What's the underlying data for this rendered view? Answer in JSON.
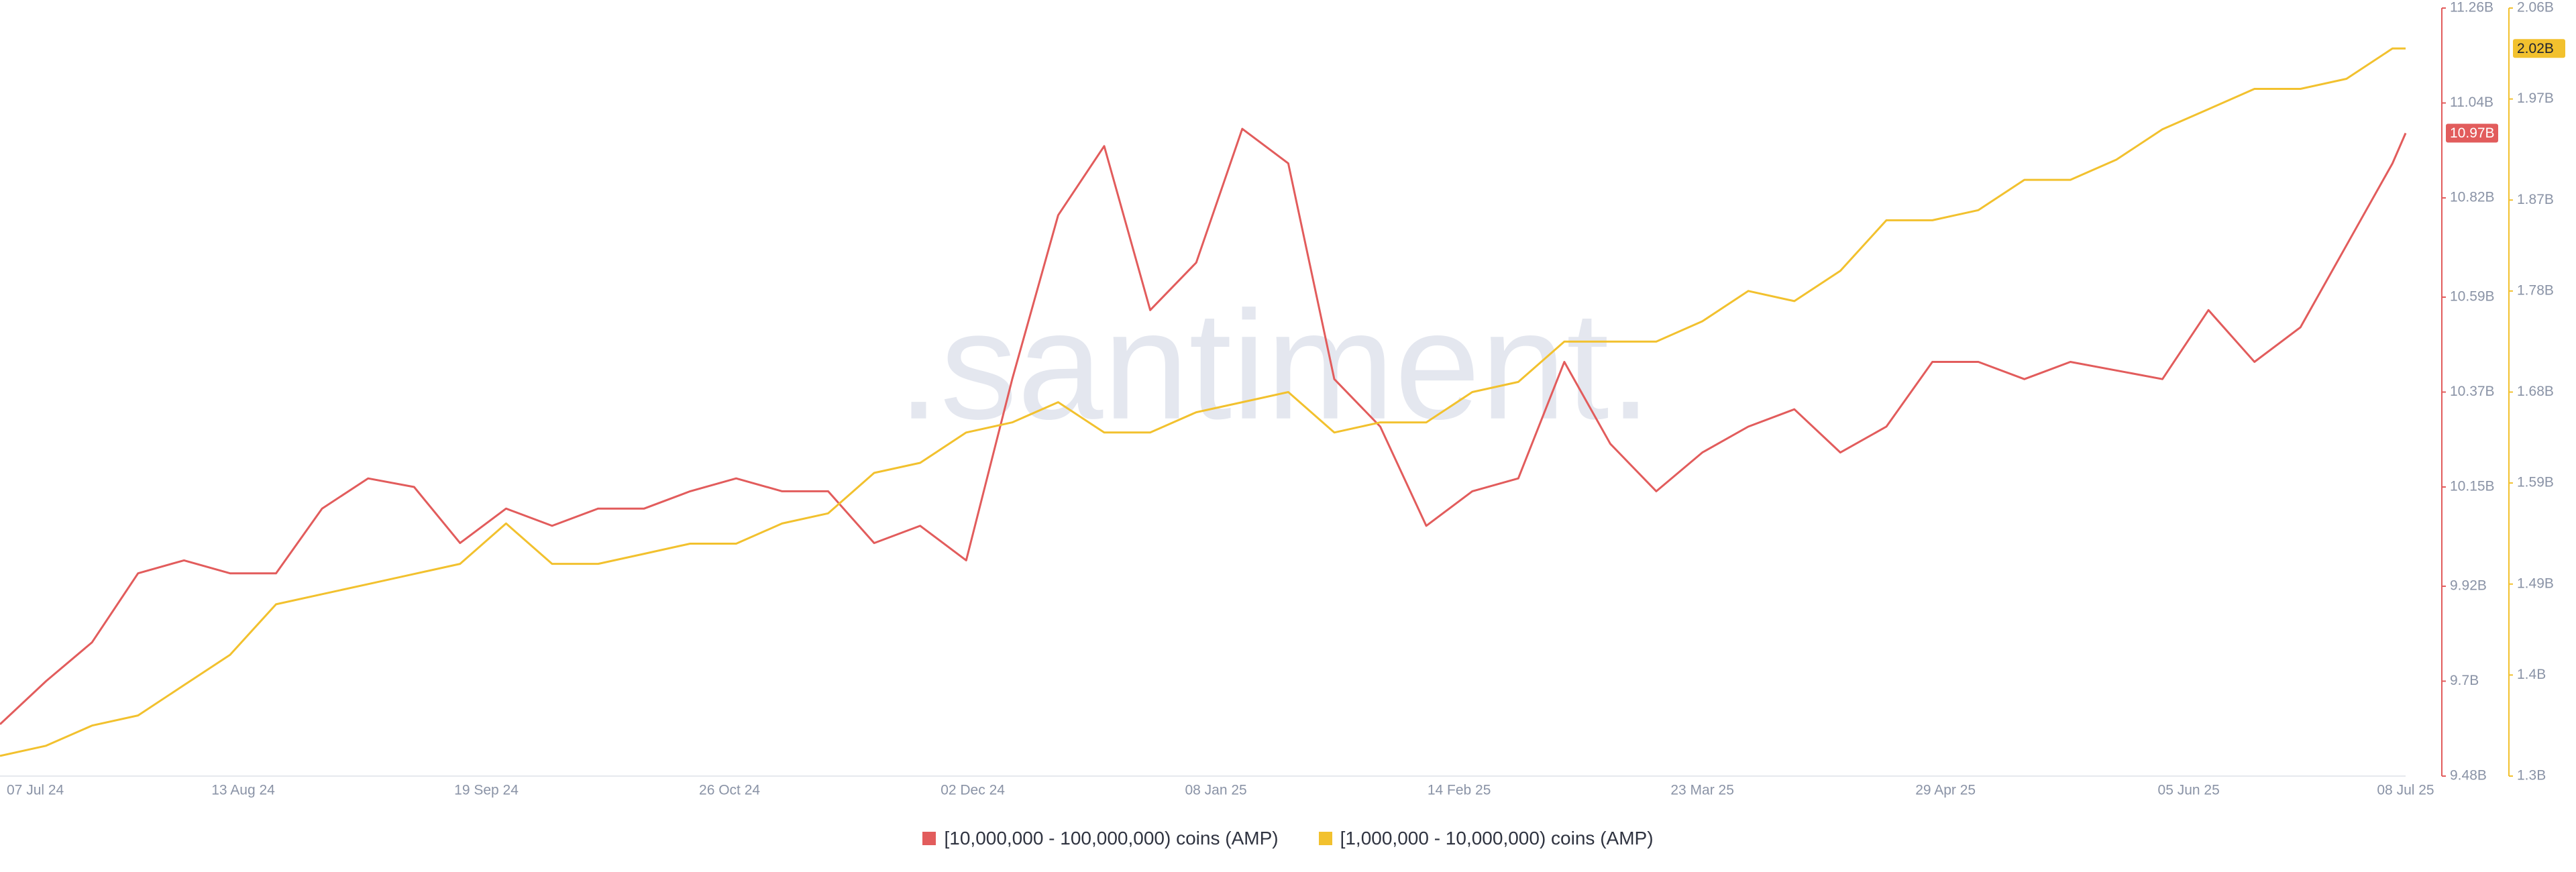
{
  "chart_data": {
    "type": "line",
    "watermark": ".santiment.",
    "x": [
      "07 Jul 24",
      "14 Jul 24",
      "21 Jul 24",
      "28 Jul 24",
      "04 Aug 24",
      "11 Aug 24",
      "18 Aug 24",
      "25 Aug 24",
      "01 Sep 24",
      "08 Sep 24",
      "15 Sep 24",
      "22 Sep 24",
      "29 Sep 24",
      "06 Oct 24",
      "13 Oct 24",
      "20 Oct 24",
      "27 Oct 24",
      "03 Nov 24",
      "10 Nov 24",
      "17 Nov 24",
      "24 Nov 24",
      "01 Dec 24",
      "08 Dec 24",
      "15 Dec 24",
      "22 Dec 24",
      "29 Dec 24",
      "05 Jan 25",
      "12 Jan 25",
      "19 Jan 25",
      "26 Jan 25",
      "02 Feb 25",
      "09 Feb 25",
      "16 Feb 25",
      "23 Feb 25",
      "02 Mar 25",
      "09 Mar 25",
      "16 Mar 25",
      "23 Mar 25",
      "30 Mar 25",
      "06 Apr 25",
      "13 Apr 25",
      "20 Apr 25",
      "27 Apr 25",
      "04 May 25",
      "11 May 25",
      "18 May 25",
      "25 May 25",
      "01 Jun 25",
      "08 Jun 25",
      "15 Jun 25",
      "22 Jun 25",
      "29 Jun 25",
      "06 Jul 25",
      "08 Jul 25"
    ],
    "xlim": [
      "07 Jul 24",
      "08 Jul 25"
    ],
    "xticks": [
      "07 Jul 24",
      "13 Aug 24",
      "19 Sep 24",
      "26 Oct 24",
      "02 Dec 24",
      "08 Jan 25",
      "14 Feb 25",
      "23 Mar 25",
      "29 Apr 25",
      "05 Jun 25",
      "08 Jul 25"
    ],
    "series": [
      {
        "name": "[10,000,000 - 100,000,000) coins (AMP)",
        "color": "#e25c5c",
        "values": [
          9.6,
          9.7,
          9.79,
          9.95,
          9.98,
          9.95,
          9.95,
          10.1,
          10.17,
          10.15,
          10.02,
          10.1,
          10.06,
          10.1,
          10.1,
          10.14,
          10.17,
          10.14,
          10.14,
          10.02,
          10.06,
          9.98,
          10.4,
          10.78,
          10.94,
          10.56,
          10.67,
          10.98,
          10.9,
          10.4,
          10.29,
          10.06,
          10.14,
          10.17,
          10.44,
          10.25,
          10.14,
          10.23,
          10.29,
          10.33,
          10.23,
          10.29,
          10.44,
          10.44,
          10.4,
          10.44,
          10.42,
          10.4,
          10.56,
          10.44,
          10.52,
          10.71,
          10.9,
          10.97
        ],
        "badge": {
          "value": 10.97,
          "label": "10.97B"
        }
      },
      {
        "name": "[1,000,000 - 10,000,000) coins (AMP)",
        "color": "#f2c12e",
        "axis": "y2",
        "values": [
          1.32,
          1.33,
          1.35,
          1.36,
          1.39,
          1.42,
          1.47,
          1.48,
          1.49,
          1.5,
          1.51,
          1.55,
          1.51,
          1.51,
          1.52,
          1.53,
          1.53,
          1.55,
          1.56,
          1.6,
          1.61,
          1.64,
          1.65,
          1.67,
          1.64,
          1.64,
          1.66,
          1.67,
          1.68,
          1.64,
          1.65,
          1.65,
          1.68,
          1.69,
          1.73,
          1.73,
          1.73,
          1.75,
          1.78,
          1.77,
          1.8,
          1.85,
          1.85,
          1.86,
          1.89,
          1.89,
          1.91,
          1.94,
          1.96,
          1.98,
          1.98,
          1.99,
          2.02,
          2.02
        ],
        "badge": {
          "value": 2.02,
          "label": "2.02B"
        }
      }
    ],
    "ylim": [
      9.48,
      11.26
    ],
    "yticks": [
      {
        "value": 9.48,
        "label": "9.48B"
      },
      {
        "value": 9.7,
        "label": "9.7B"
      },
      {
        "value": 9.92,
        "label": "9.92B"
      },
      {
        "value": 10.15,
        "label": "10.15B"
      },
      {
        "value": 10.37,
        "label": "10.37B"
      },
      {
        "value": 10.59,
        "label": "10.59B"
      },
      {
        "value": 10.82,
        "label": "10.82B"
      },
      {
        "value": 11.04,
        "label": "11.04B"
      },
      {
        "value": 11.26,
        "label": "11.26B"
      }
    ],
    "y2lim": [
      1.3,
      2.06
    ],
    "y2ticks": [
      {
        "value": 1.3,
        "label": "1.3B"
      },
      {
        "value": 1.4,
        "label": "1.4B"
      },
      {
        "value": 1.49,
        "label": "1.49B"
      },
      {
        "value": 1.59,
        "label": "1.59B"
      },
      {
        "value": 1.68,
        "label": "1.68B"
      },
      {
        "value": 1.78,
        "label": "1.78B"
      },
      {
        "value": 1.87,
        "label": "1.87B"
      },
      {
        "value": 1.97,
        "label": "1.97B"
      },
      {
        "value": 2.06,
        "label": "2.06B"
      }
    ],
    "grid": false
  }
}
